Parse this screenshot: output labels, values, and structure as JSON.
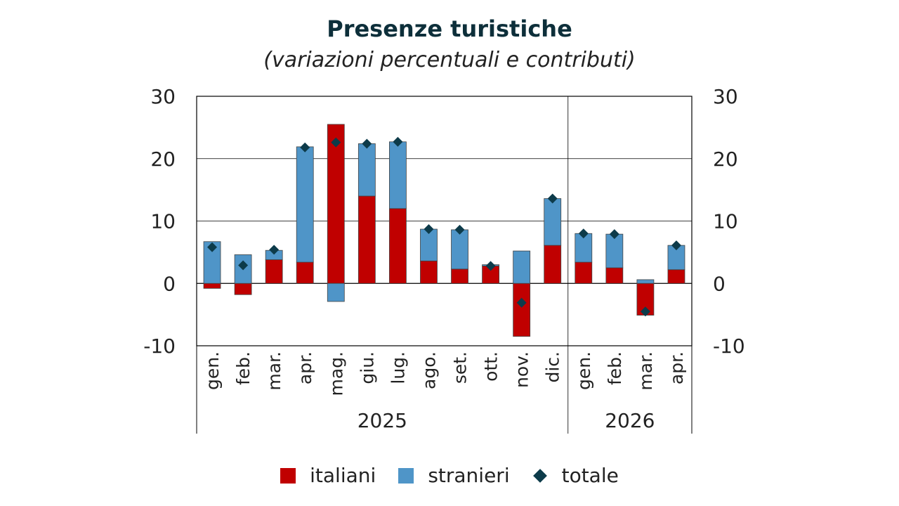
{
  "chart_data": {
    "type": "bar",
    "title": "Presenze turistiche",
    "subtitle": "(variazioni percentuali e contributi)",
    "ylim": [
      -10,
      30
    ],
    "yticks": [
      -10,
      0,
      10,
      20,
      30
    ],
    "stacked": true,
    "grid": "horizontal",
    "legend_position": "bottom",
    "categories": [
      "gen.",
      "feb.",
      "mar.",
      "apr.",
      "mag.",
      "giu.",
      "lug.",
      "ago.",
      "set.",
      "ott.",
      "nov.",
      "dic.",
      "gen.",
      "feb.",
      "mar.",
      "apr."
    ],
    "groups": [
      {
        "label": "2025",
        "count": 12
      },
      {
        "label": "2026",
        "count": 4
      }
    ],
    "series": [
      {
        "name": "italiani",
        "kind": "bar",
        "color": "#c00000",
        "values": [
          -0.8,
          -1.8,
          3.8,
          3.4,
          25.5,
          14.0,
          12.0,
          3.6,
          2.3,
          2.8,
          -8.5,
          6.1,
          3.4,
          2.5,
          -5.1,
          2.2
        ]
      },
      {
        "name": "stranieri",
        "kind": "bar",
        "color": "#4f95c8",
        "values": [
          6.7,
          4.6,
          1.5,
          18.5,
          -2.9,
          8.4,
          10.7,
          5.1,
          6.3,
          0.2,
          5.2,
          7.5,
          4.6,
          5.4,
          0.6,
          3.9
        ]
      },
      {
        "name": "totale",
        "kind": "marker",
        "color": "#0d3b4a",
        "values": [
          5.8,
          2.9,
          5.4,
          21.8,
          22.6,
          22.4,
          22.7,
          8.7,
          8.6,
          2.8,
          -3.1,
          13.6,
          8.0,
          7.9,
          -4.5,
          6.1
        ]
      }
    ]
  }
}
